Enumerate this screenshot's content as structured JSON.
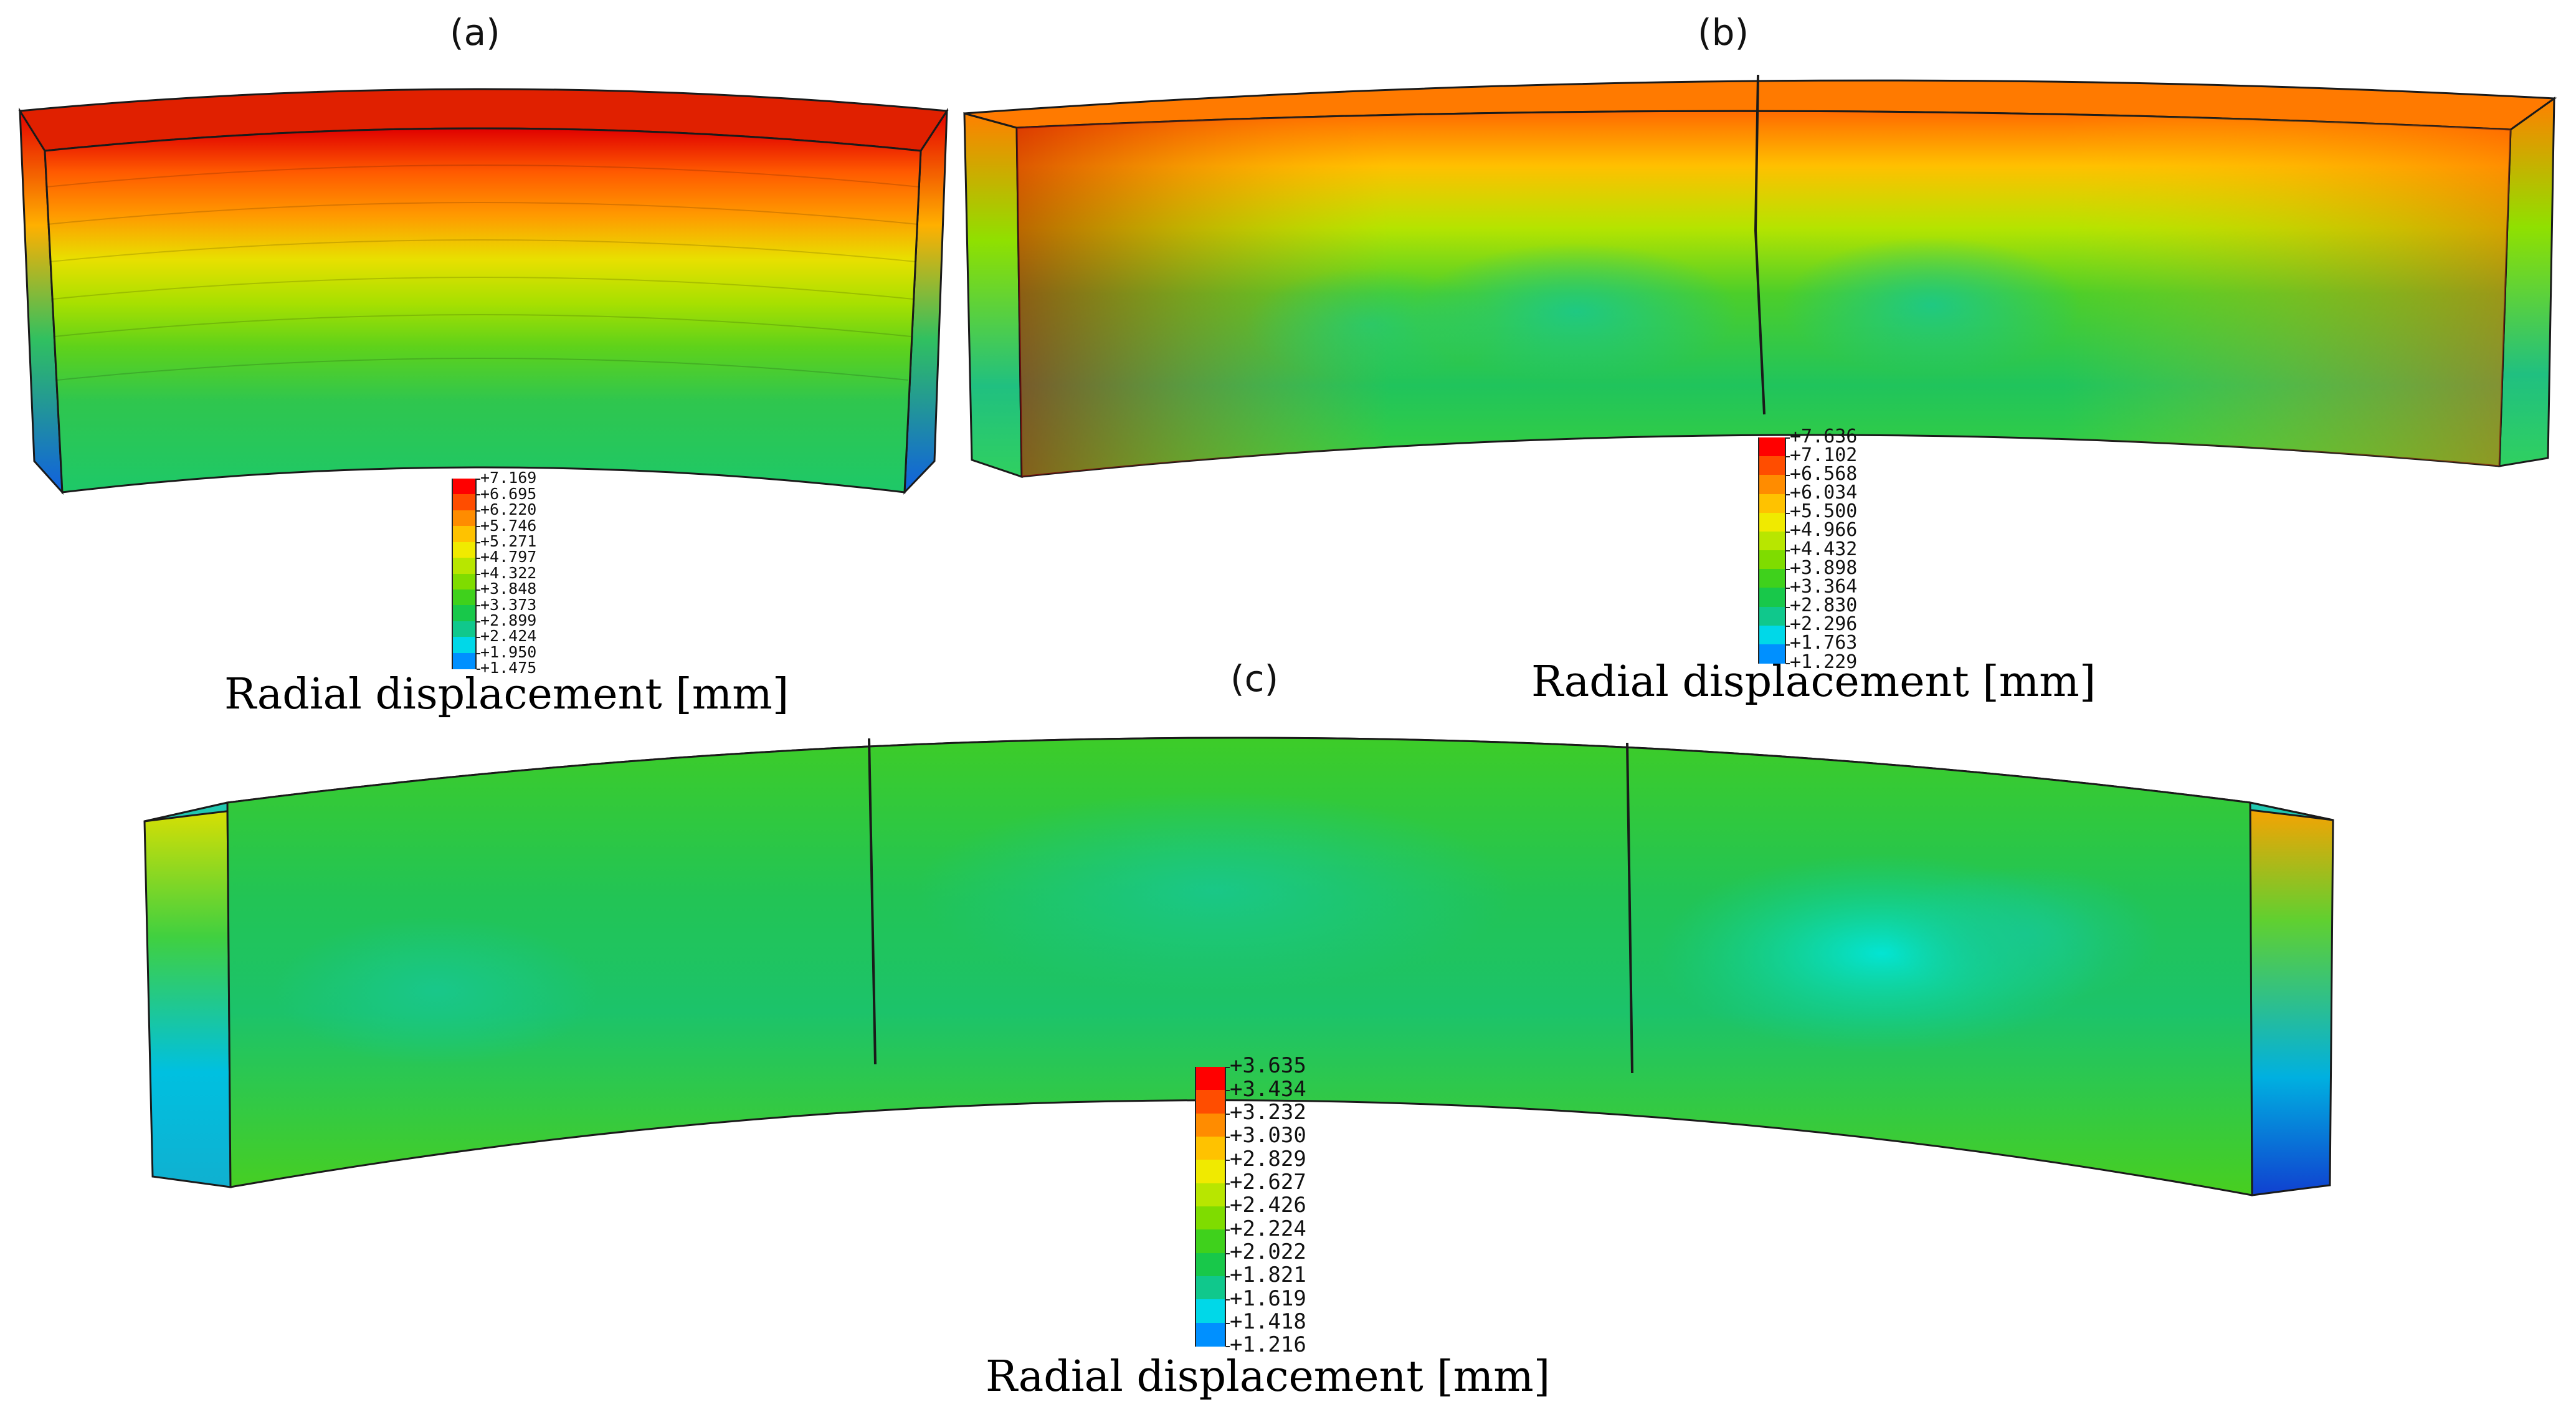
{
  "panels": [
    {
      "id": "a",
      "label": "(a)",
      "legend_title": "Radial displacement [mm]",
      "legend_values": [
        "+7.169",
        "+6.695",
        "+6.220",
        "+5.746",
        "+5.271",
        "+4.797",
        "+4.322",
        "+3.848",
        "+3.373",
        "+2.899",
        "+2.424",
        "+1.950",
        "+1.475"
      ]
    },
    {
      "id": "b",
      "label": "(b)",
      "legend_title": "Radial displacement [mm]",
      "legend_values": [
        "+7.636",
        "+7.102",
        "+6.568",
        "+6.034",
        "+5.500",
        "+4.966",
        "+4.432",
        "+3.898",
        "+3.364",
        "+2.830",
        "+2.296",
        "+1.763",
        "+1.229"
      ]
    },
    {
      "id": "c",
      "label": "(c)",
      "legend_title": "Radial displacement [mm]",
      "legend_values": [
        "+3.635",
        "+3.434",
        "+3.232",
        "+3.030",
        "+2.829",
        "+2.627",
        "+2.426",
        "+2.224",
        "+2.022",
        "+1.821",
        "+1.619",
        "+1.418",
        "+1.216"
      ]
    }
  ],
  "colors": {
    "contour_scale": [
      "#ff0000",
      "#ff4d00",
      "#ff8c00",
      "#ffc200",
      "#f0ea00",
      "#b8e600",
      "#7fdc00",
      "#3fd11c",
      "#18c84a",
      "#10c88c",
      "#00d8e8",
      "#0090ff",
      "#0010ff"
    ],
    "outline": "#1a1a1a"
  }
}
